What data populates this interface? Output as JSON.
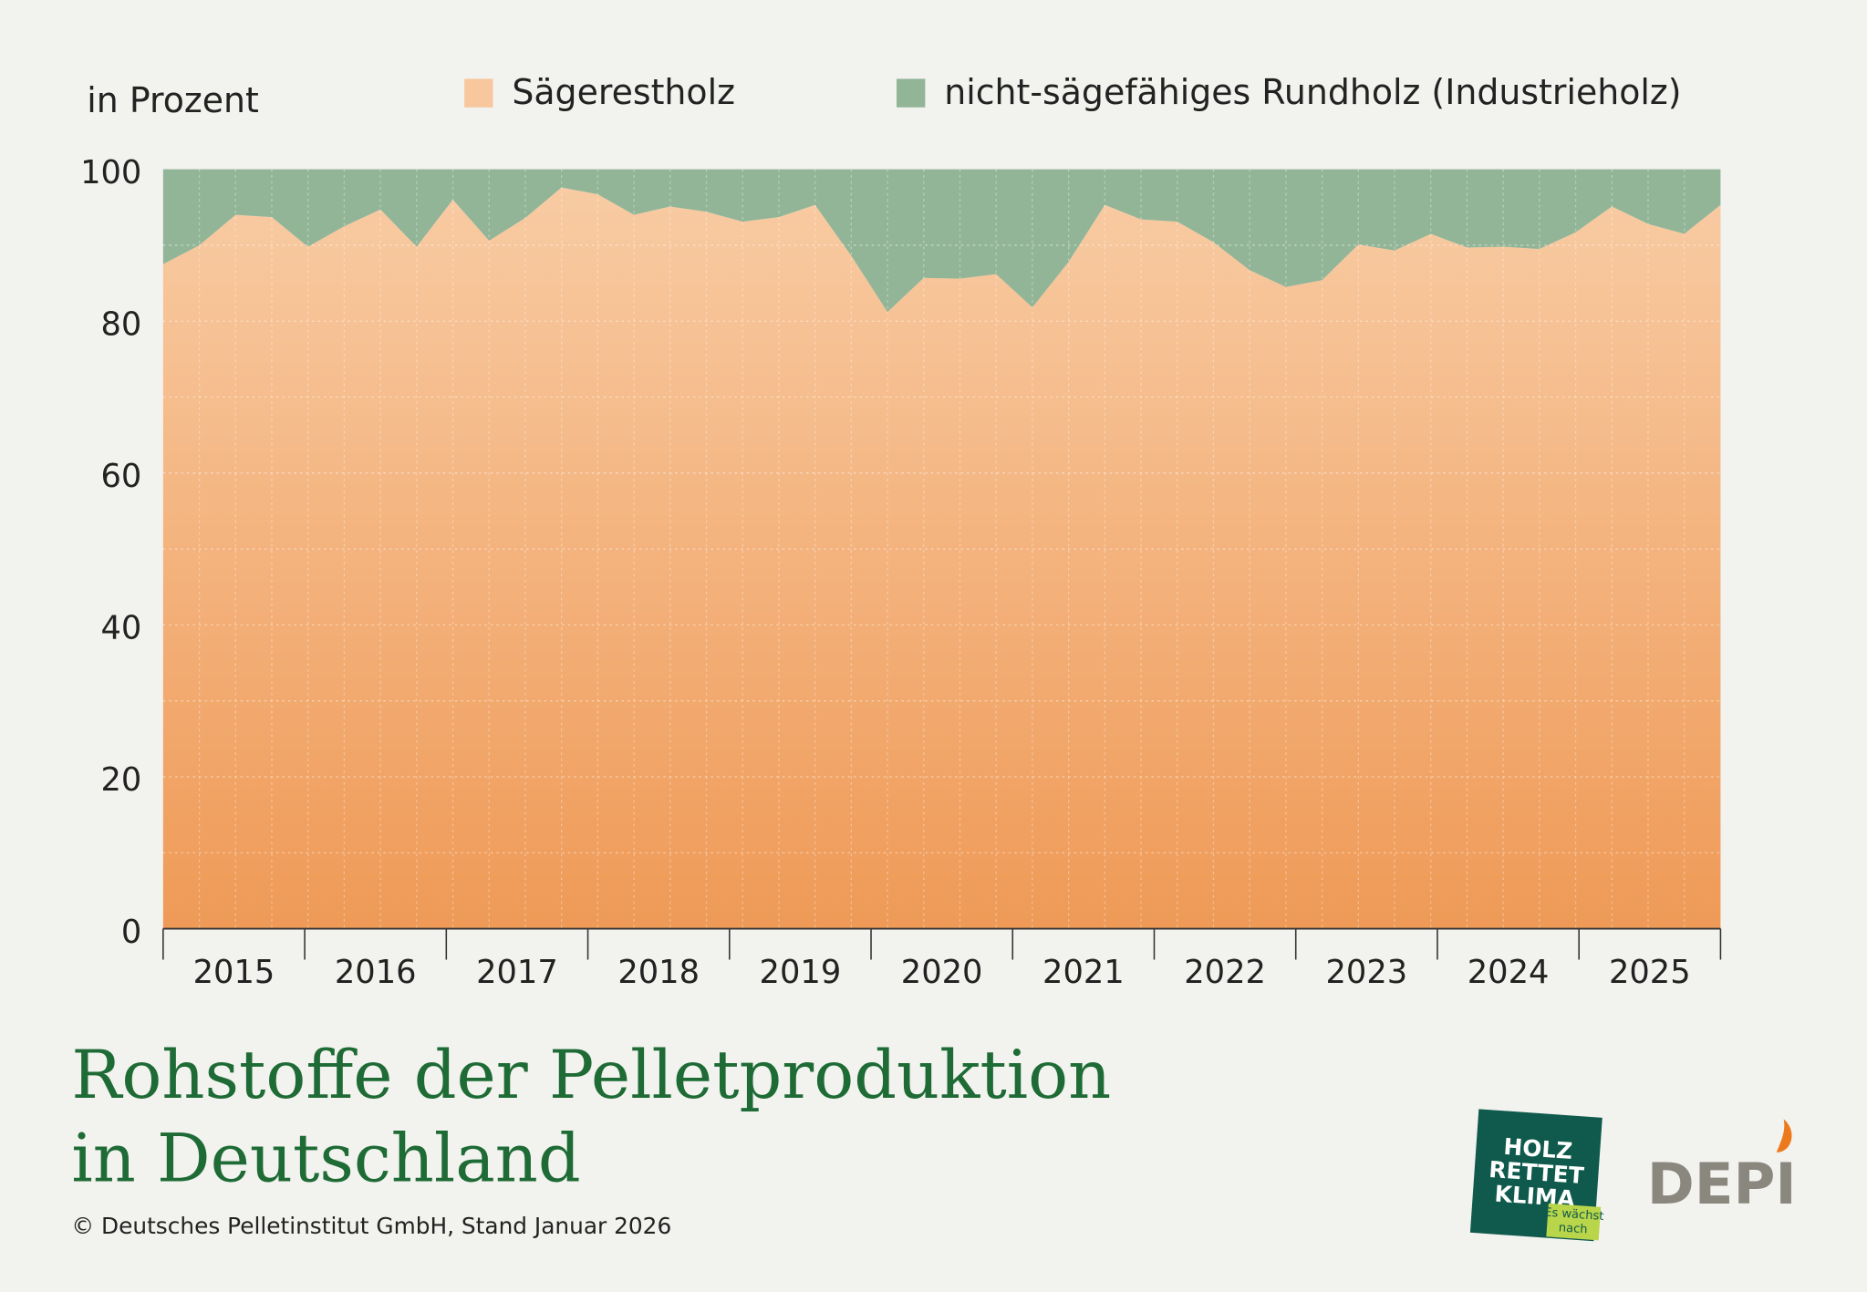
{
  "chart_data": {
    "type": "stacked_area",
    "title_lines": [
      "Rohstoffe der Pelletproduktion",
      "in Deutschland"
    ],
    "y_unit_label": "in Prozent",
    "source": "© Deutsches Pelletinstitut GmbH, Stand Januar 2026",
    "logos": {
      "holz": [
        "HOLZ",
        "RETTET",
        "KLIMA"
      ],
      "holz_tag": [
        "Es wächst",
        "nach"
      ],
      "depi": "DEPI"
    },
    "years": [
      "2015",
      "2016",
      "2017",
      "2018",
      "2019",
      "2020",
      "2021",
      "2022",
      "2023",
      "2024",
      "2025"
    ],
    "categories": [
      null,
      null,
      null,
      null,
      null,
      null,
      null,
      null,
      null,
      null,
      null,
      null,
      null,
      null,
      null,
      null,
      null,
      null,
      null,
      null,
      null,
      null,
      null,
      null,
      null,
      null,
      null,
      null,
      null,
      null,
      null,
      null,
      null,
      null,
      null,
      null,
      null,
      null,
      null,
      null,
      null,
      null,
      null,
      null
    ],
    "series": [
      {
        "name": "Sägerestholz",
        "color": "#f8c79d",
        "values": [
          87.5,
          90,
          94,
          93.7,
          89.8,
          92.5,
          94.7,
          89.8,
          96,
          90.6,
          93.6,
          97.6,
          96.7,
          94,
          95.1,
          94.4,
          93.1,
          93.7,
          95.3,
          88.6,
          81.2,
          85.7,
          85.6,
          86.2,
          81.8,
          87.8,
          95.3,
          93.4,
          93.1,
          90.4,
          86.7,
          84.5,
          85.4,
          90.1,
          89.3,
          91.5,
          89.7,
          89.8,
          89.5,
          91.7,
          95.1,
          92.8,
          91.5,
          95.3
        ]
      },
      {
        "name": "nicht-sägefähiges Rundholz (Industrieholz)",
        "color": "#93b597",
        "values": [
          12.5,
          10,
          6,
          6.3,
          10.2,
          7.5,
          5.3,
          10.2,
          4,
          9.4,
          6.4,
          2.4,
          3.3,
          6,
          4.9,
          5.6,
          6.9,
          6.3,
          4.7,
          11.4,
          18.8,
          14.3,
          14.4,
          13.8,
          18.2,
          12.2,
          4.7,
          6.6,
          6.9,
          9.6,
          13.3,
          15.5,
          14.6,
          9.9,
          10.7,
          8.5,
          10.3,
          10.2,
          10.5,
          8.3,
          4.9,
          7.2,
          8.5,
          4.7
        ]
      }
    ],
    "ylim": [
      0,
      100
    ],
    "yticks": [
      0,
      20,
      40,
      60,
      80,
      100
    ],
    "minor_yticks": [
      10,
      30,
      50,
      70,
      90
    ],
    "grid": true
  }
}
